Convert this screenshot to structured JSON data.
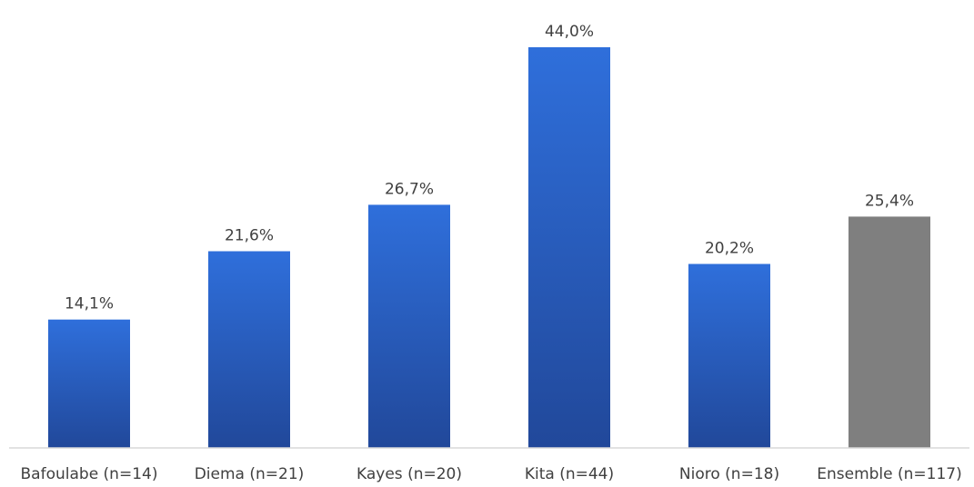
{
  "chart_data": {
    "type": "bar",
    "categories": [
      "Bafoulabe (n=14)",
      "Diema (n=21)",
      "Kayes (n=20)",
      "Kita (n=44)",
      "Nioro (n=18)",
      "Ensemble (n=117)"
    ],
    "values": [
      14.1,
      21.6,
      26.7,
      44.0,
      20.2,
      25.4
    ],
    "data_labels": [
      "14,1%",
      "21,6%",
      "26,7%",
      "44,0%",
      "20,2%",
      "25,4%"
    ],
    "bar_colors": [
      "blue",
      "blue",
      "blue",
      "blue",
      "blue",
      "gray"
    ],
    "colors": {
      "bar_top": "#2f6fdb",
      "bar_bottom": "#21489a",
      "highlight": "#7f7f7f",
      "axis": "#d9d9d9",
      "text": "#404040"
    },
    "ylim": [
      0,
      44.0
    ],
    "grid": false,
    "legend": "none",
    "title": "",
    "xlabel": "",
    "ylabel": ""
  }
}
